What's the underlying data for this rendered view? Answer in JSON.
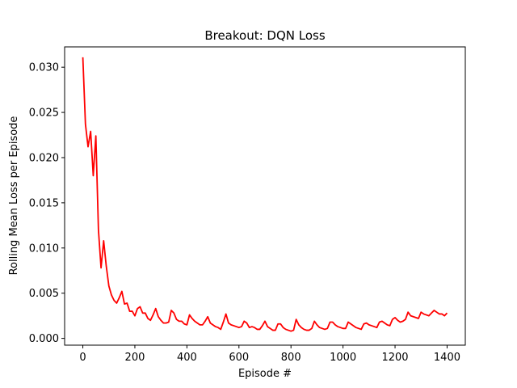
{
  "chart_data": {
    "type": "line",
    "title": "Breakout: DQN Loss",
    "xlabel": "Episode #",
    "ylabel": "Rolling Mean Loss per Episode",
    "xlim": [
      -70,
      1470
    ],
    "ylim": [
      -0.00075,
      0.03225
    ],
    "xticks": [
      0,
      200,
      400,
      600,
      800,
      1000,
      1200,
      1400
    ],
    "xtick_labels": [
      "0",
      "200",
      "400",
      "600",
      "800",
      "1000",
      "1200",
      "1400"
    ],
    "yticks": [
      0.0,
      0.005,
      0.01,
      0.015,
      0.02,
      0.025,
      0.03
    ],
    "ytick_labels": [
      "0.000",
      "0.005",
      "0.010",
      "0.015",
      "0.020",
      "0.025",
      "0.030"
    ],
    "grid": false,
    "series": [
      {
        "color": "#ff0000",
        "x": [
          0,
          10,
          20,
          30,
          40,
          50,
          60,
          70,
          80,
          90,
          100,
          110,
          120,
          130,
          140,
          150,
          160,
          170,
          180,
          190,
          200,
          210,
          220,
          230,
          240,
          250,
          260,
          270,
          280,
          290,
          300,
          310,
          320,
          330,
          340,
          350,
          360,
          370,
          380,
          390,
          400,
          410,
          420,
          430,
          440,
          450,
          460,
          470,
          480,
          490,
          500,
          510,
          520,
          530,
          540,
          550,
          560,
          570,
          580,
          590,
          600,
          610,
          620,
          630,
          640,
          650,
          660,
          670,
          680,
          690,
          700,
          710,
          720,
          730,
          740,
          750,
          760,
          770,
          780,
          790,
          800,
          810,
          820,
          830,
          840,
          850,
          860,
          870,
          880,
          890,
          900,
          910,
          920,
          930,
          940,
          950,
          960,
          970,
          980,
          990,
          1000,
          1010,
          1020,
          1030,
          1040,
          1050,
          1060,
          1070,
          1080,
          1090,
          1100,
          1110,
          1120,
          1130,
          1140,
          1150,
          1160,
          1170,
          1180,
          1190,
          1200,
          1210,
          1220,
          1230,
          1240,
          1250,
          1260,
          1270,
          1280,
          1290,
          1300,
          1310,
          1320,
          1330,
          1340,
          1350,
          1360,
          1370,
          1380,
          1390,
          1400
        ],
        "y": [
          0.0311,
          0.0237,
          0.0212,
          0.0229,
          0.018,
          0.0224,
          0.012,
          0.0078,
          0.0108,
          0.008,
          0.0058,
          0.0048,
          0.0042,
          0.0039,
          0.0045,
          0.0052,
          0.0038,
          0.0039,
          0.003,
          0.003,
          0.0025,
          0.0033,
          0.0035,
          0.0028,
          0.0028,
          0.0022,
          0.002,
          0.0026,
          0.0033,
          0.0024,
          0.002,
          0.0017,
          0.0017,
          0.0018,
          0.0031,
          0.0028,
          0.0021,
          0.0019,
          0.0019,
          0.0016,
          0.0015,
          0.0026,
          0.0022,
          0.0019,
          0.0017,
          0.0015,
          0.0015,
          0.0019,
          0.0024,
          0.0017,
          0.0015,
          0.0013,
          0.0012,
          0.001,
          0.0018,
          0.0027,
          0.0017,
          0.0015,
          0.0014,
          0.0013,
          0.0012,
          0.0013,
          0.0019,
          0.0017,
          0.0012,
          0.0013,
          0.0012,
          0.001,
          0.001,
          0.0014,
          0.0019,
          0.0013,
          0.0011,
          0.0009,
          0.0009,
          0.0016,
          0.0016,
          0.0012,
          0.001,
          0.0009,
          0.0008,
          0.0009,
          0.0021,
          0.0015,
          0.0012,
          0.001,
          0.0009,
          0.0009,
          0.0011,
          0.0019,
          0.0015,
          0.0012,
          0.0011,
          0.001,
          0.0011,
          0.0018,
          0.0018,
          0.0015,
          0.0013,
          0.0012,
          0.0011,
          0.0011,
          0.0018,
          0.0016,
          0.0014,
          0.0012,
          0.0011,
          0.001,
          0.0016,
          0.0017,
          0.0015,
          0.0014,
          0.0013,
          0.0012,
          0.0018,
          0.0019,
          0.0017,
          0.0015,
          0.0014,
          0.0021,
          0.0023,
          0.002,
          0.0018,
          0.0019,
          0.0021,
          0.0029,
          0.0025,
          0.0024,
          0.0023,
          0.0022,
          0.0029,
          0.0027,
          0.0026,
          0.0025,
          0.0028,
          0.0031,
          0.0029,
          0.0027,
          0.0027,
          0.0025,
          0.0028
        ]
      }
    ]
  }
}
